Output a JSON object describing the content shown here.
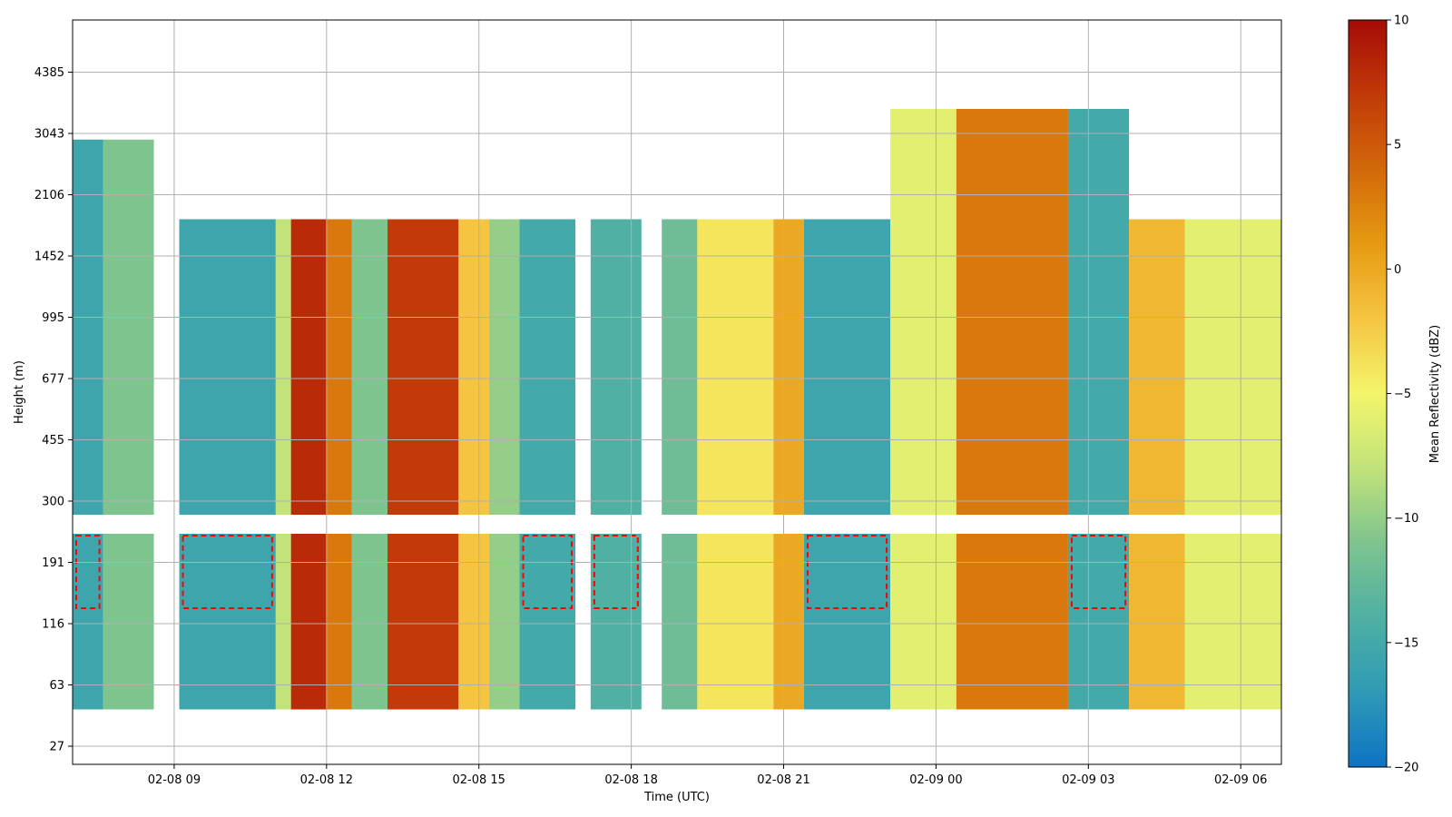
{
  "chart_data": {
    "type": "heatmap",
    "title": "",
    "xlabel": "Time (UTC)",
    "ylabel": "Height (m)",
    "grid": true,
    "x_ticks": [
      "02-08 09",
      "02-08 12",
      "02-08 15",
      "02-08 18",
      "02-08 21",
      "02-09 00",
      "02-09 03",
      "02-09 06"
    ],
    "x_tick_hours": [
      9,
      12,
      15,
      18,
      21,
      24,
      27,
      30
    ],
    "xlim_hours": [
      7.0,
      30.8
    ],
    "y_ticks": [
      "27",
      "63",
      "116",
      "191",
      "300",
      "455",
      "677",
      "995",
      "1452",
      "2106",
      "3043",
      "4385"
    ],
    "colorbar": {
      "label": "Mean Reflectivity (dBZ)",
      "range": [
        -20,
        10
      ],
      "ticks": [
        "10",
        "5",
        "0",
        "−5",
        "−10",
        "−15",
        "−20"
      ],
      "colormap": [
        "#0d73c4",
        "#2f9ab5",
        "#4fb0a3",
        "#7ec48f",
        "#c1e37a",
        "#f3f56b",
        "#f5c542",
        "#e69a12",
        "#d2680a",
        "#c13a08",
        "#a50b07"
      ]
    },
    "contour": {
      "level_dBZ": -15,
      "color": "#ff0000",
      "style": "dashed"
    },
    "reflectivity_profiles": [
      {
        "t": 7.0,
        "t2": 7.6,
        "dBZ": -15.5
      },
      {
        "t": 7.6,
        "t2": 8.6,
        "dBZ": -11
      },
      {
        "t": 9.1,
        "t2": 11.0,
        "dBZ": -15.5
      },
      {
        "t": 11.0,
        "t2": 11.3,
        "dBZ": -8
      },
      {
        "t": 11.3,
        "t2": 12.0,
        "dBZ": 8
      },
      {
        "t": 12.0,
        "t2": 12.5,
        "dBZ": 3
      },
      {
        "t": 12.5,
        "t2": 13.2,
        "dBZ": -11
      },
      {
        "t": 13.2,
        "t2": 14.6,
        "dBZ": 7
      },
      {
        "t": 14.6,
        "t2": 15.2,
        "dBZ": -2
      },
      {
        "t": 15.2,
        "t2": 15.8,
        "dBZ": -10
      },
      {
        "t": 15.8,
        "t2": 16.9,
        "dBZ": -15
      },
      {
        "t": 17.2,
        "t2": 18.2,
        "dBZ": -14
      },
      {
        "t": 18.6,
        "t2": 19.3,
        "dBZ": -12
      },
      {
        "t": 19.3,
        "t2": 20.8,
        "dBZ": -4
      },
      {
        "t": 20.8,
        "t2": 21.4,
        "dBZ": 0
      },
      {
        "t": 21.4,
        "t2": 23.1,
        "dBZ": -15.5
      },
      {
        "t": 23.1,
        "t2": 24.4,
        "dBZ": -6
      },
      {
        "t": 24.4,
        "t2": 26.6,
        "dBZ": 3
      },
      {
        "t": 26.6,
        "t2": 27.8,
        "dBZ": -15
      },
      {
        "t": 27.8,
        "t2": 28.9,
        "dBZ": -1
      },
      {
        "t": 28.9,
        "t2": 30.8,
        "dBZ": -6
      }
    ]
  }
}
